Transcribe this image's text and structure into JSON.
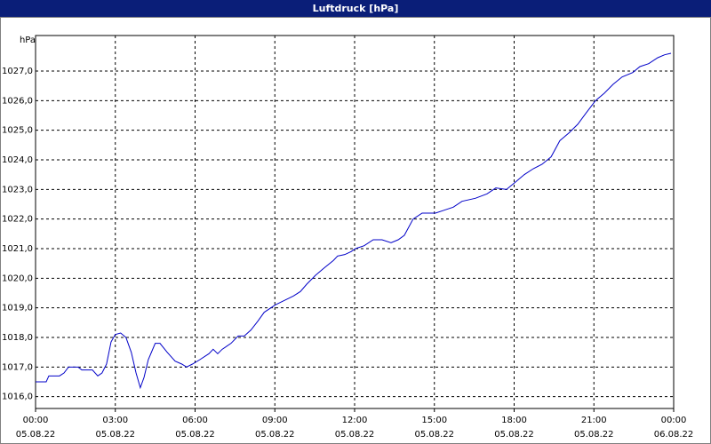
{
  "chart_data": {
    "type": "line",
    "title": "Luftdruck [hPa]",
    "y_unit": "hPa",
    "color": "#0000c8",
    "grid": true,
    "x": [
      0,
      0.4,
      0.5,
      0.9,
      1.07,
      1.24,
      1.6,
      1.74,
      2.14,
      2.34,
      2.5,
      2.67,
      2.84,
      3.0,
      3.2,
      3.4,
      3.6,
      3.78,
      3.94,
      4.08,
      4.24,
      4.5,
      4.68,
      4.95,
      5.25,
      5.5,
      5.68,
      5.9,
      6.18,
      6.52,
      6.68,
      6.85,
      7.02,
      7.35,
      7.62,
      7.85,
      8.1,
      8.36,
      8.6,
      9.02,
      9.36,
      9.7,
      9.96,
      10.2,
      10.53,
      10.86,
      11.2,
      11.36,
      11.63,
      11.87,
      12.03,
      12.36,
      12.7,
      13.03,
      13.37,
      13.64,
      13.87,
      14.2,
      14.54,
      15.04,
      15.37,
      15.71,
      16.04,
      16.54,
      16.98,
      17.31,
      17.71,
      18.05,
      18.38,
      18.72,
      19.05,
      19.39,
      19.72,
      20.05,
      20.39,
      20.72,
      21.06,
      21.39,
      21.72,
      22.06,
      22.46,
      22.73,
      23.06,
      23.4,
      23.66,
      23.9
    ],
    "values": [
      1016.5,
      1016.5,
      1016.7,
      1016.7,
      1016.8,
      1017.0,
      1017.0,
      1016.9,
      1016.9,
      1016.7,
      1016.8,
      1017.1,
      1017.85,
      1018.1,
      1018.15,
      1018.0,
      1017.5,
      1016.8,
      1016.3,
      1016.65,
      1017.25,
      1017.8,
      1017.8,
      1017.5,
      1017.2,
      1017.1,
      1017.0,
      1017.1,
      1017.25,
      1017.45,
      1017.6,
      1017.45,
      1017.6,
      1017.8,
      1018.05,
      1018.05,
      1018.25,
      1018.55,
      1018.85,
      1019.1,
      1019.25,
      1019.4,
      1019.55,
      1019.8,
      1020.1,
      1020.35,
      1020.6,
      1020.75,
      1020.8,
      1020.9,
      1021.0,
      1021.1,
      1021.3,
      1021.3,
      1021.2,
      1021.3,
      1021.45,
      1022.0,
      1022.2,
      1022.2,
      1022.3,
      1022.4,
      1022.6,
      1022.7,
      1022.85,
      1023.05,
      1023.0,
      1023.25,
      1023.5,
      1023.7,
      1023.85,
      1024.1,
      1024.65,
      1024.9,
      1025.2,
      1025.6,
      1026.0,
      1026.25,
      1026.55,
      1026.8,
      1026.95,
      1027.15,
      1027.25,
      1027.45,
      1027.55,
      1027.6
    ],
    "xlim": [
      0,
      24
    ],
    "xticks": [
      {
        "value": 0,
        "label": "00:00"
      },
      {
        "value": 3,
        "label": "03:00"
      },
      {
        "value": 6,
        "label": "06:00"
      },
      {
        "value": 9,
        "label": "09:00"
      },
      {
        "value": 12,
        "label": "12:00"
      },
      {
        "value": 15,
        "label": "15:00"
      },
      {
        "value": 18,
        "label": "18:00"
      },
      {
        "value": 21,
        "label": "21:00"
      },
      {
        "value": 24,
        "label": "00:00"
      }
    ],
    "xtick_dates": [
      "05.08.22",
      "05.08.22",
      "05.08.22",
      "05.08.22",
      "05.08.22",
      "05.08.22",
      "05.08.22",
      "05.08.22",
      "06.08.22"
    ],
    "ylim": [
      1015.6,
      1028.2
    ],
    "yticks": [
      {
        "value": 1016,
        "label": "1016,0"
      },
      {
        "value": 1017,
        "label": "1017,0"
      },
      {
        "value": 1018,
        "label": "1018,0"
      },
      {
        "value": 1019,
        "label": "1019,0"
      },
      {
        "value": 1020,
        "label": "1020,0"
      },
      {
        "value": 1021,
        "label": "1021,0"
      },
      {
        "value": 1022,
        "label": "1022,0"
      },
      {
        "value": 1023,
        "label": "1023,0"
      },
      {
        "value": 1024,
        "label": "1024,0"
      },
      {
        "value": 1025,
        "label": "1025,0"
      },
      {
        "value": 1026,
        "label": "1026,0"
      },
      {
        "value": 1027,
        "label": "1027,0"
      }
    ]
  }
}
